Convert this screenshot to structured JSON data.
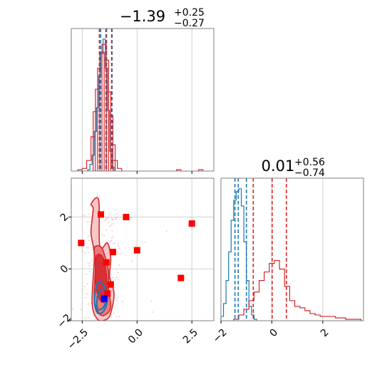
{
  "colors": {
    "blue": "#1f77b4",
    "red": "#d62728",
    "marker_red": "#ff0000",
    "marker_blue": "#0000ff",
    "fill_light": "#f6c6c8",
    "fill_mid": "#ea7a7e",
    "fill_dark": "#d92f36",
    "grid": "#cfcfcf"
  },
  "chart_data": [
    {
      "type": "histogram",
      "panel": "top-left marginal",
      "title": {
        "value": "−1.39",
        "sup": "+0.25",
        "sub": "−0.27"
      },
      "xlim": [
        -3.0,
        3.5
      ],
      "grid_x": [
        -2.5,
        0.0,
        2.5
      ],
      "series": [
        {
          "color": "blue",
          "bin_centers": [
            -2.2,
            -2.1,
            -2.0,
            -1.9,
            -1.8,
            -1.7,
            -1.6,
            -1.5,
            -1.4,
            -1.3,
            -1.2,
            -1.1
          ],
          "counts": [
            1,
            5,
            12,
            30,
            48,
            72,
            89,
            100,
            78,
            46,
            15,
            3
          ]
        },
        {
          "color": "red",
          "bin_centers": [
            -2.6,
            -2.4,
            -2.2,
            -2.0,
            -1.9,
            -1.8,
            -1.7,
            -1.6,
            -1.5,
            -1.4,
            -1.3,
            -1.2,
            -1.1,
            -1.0,
            -0.8,
            1.9,
            2.9
          ],
          "counts": [
            1,
            2,
            8,
            26,
            45,
            62,
            78,
            90,
            96,
            84,
            60,
            42,
            20,
            8,
            2,
            1,
            1
          ]
        }
      ],
      "quantile_lines": [
        {
          "color": "blue",
          "x": [
            -1.66,
            -1.39,
            -1.14
          ]
        },
        {
          "color": "red",
          "x": [
            -1.72,
            -1.42,
            -1.16
          ]
        }
      ]
    },
    {
      "type": "histogram",
      "panel": "bottom-right marginal",
      "title": {
        "value": "0.01",
        "sup": "+0.56",
        "sub": "−0.74"
      },
      "xlim": [
        -2.0,
        3.6
      ],
      "xticks": [
        -2,
        0,
        2
      ],
      "xtick_labels": [
        "−2",
        "0",
        "2"
      ],
      "series": [
        {
          "color": "blue",
          "bin_centers": [
            -1.95,
            -1.85,
            -1.75,
            -1.65,
            -1.55,
            -1.45,
            -1.35,
            -1.25,
            -1.15,
            -1.05,
            -0.95,
            -0.85,
            -0.75,
            -0.65
          ],
          "counts": [
            3,
            12,
            28,
            48,
            70,
            84,
            90,
            92,
            80,
            55,
            28,
            10,
            4,
            1
          ]
        },
        {
          "color": "red",
          "bin_centers": [
            -1.4,
            -1.2,
            -1.0,
            -0.8,
            -0.6,
            -0.4,
            -0.2,
            0.0,
            0.2,
            0.4,
            0.6,
            0.8,
            1.0,
            1.2,
            1.4,
            1.6,
            1.8,
            2.0,
            2.2,
            2.4,
            2.6,
            2.8,
            3.0,
            3.2,
            3.4
          ],
          "counts": [
            1,
            4,
            8,
            14,
            20,
            28,
            34,
            40,
            42,
            36,
            24,
            14,
            10,
            9,
            7,
            5,
            4,
            3,
            3,
            3,
            2,
            2,
            1,
            1,
            1
          ]
        }
      ],
      "quantile_lines": [
        {
          "color": "blue",
          "x": [
            -1.45,
            -1.32,
            -1.0
          ]
        },
        {
          "color": "red",
          "x": [
            -0.73,
            0.01,
            0.57
          ]
        }
      ]
    },
    {
      "type": "scatter",
      "panel": "bottom-left joint",
      "xlim": [
        -3.0,
        3.5
      ],
      "ylim": [
        -2.0,
        3.5
      ],
      "xticks": [
        -2.5,
        0.0,
        2.5
      ],
      "xtick_labels": [
        "−2.5",
        "0.0",
        "2.5"
      ],
      "yticks": [
        -2,
        0,
        2
      ],
      "ytick_labels": [
        "−2",
        "0",
        "2"
      ],
      "red_contours": [
        {
          "x": [
            -2.1,
            -1.75,
            -1.7,
            -1.35,
            -1.2,
            -1.25,
            -1.05,
            -1.2,
            -1.4,
            -1.8,
            -2.05,
            -1.95,
            -2.1,
            -2.0
          ],
          "y": [
            2.5,
            2.65,
            0.85,
            1.0,
            0.4,
            -0.3,
            -0.95,
            -1.7,
            -1.95,
            -1.95,
            -1.3,
            0.5,
            1.4,
            2.3
          ]
        },
        {
          "x": [
            -1.95,
            -1.65,
            -1.45,
            -1.3,
            -1.3,
            -1.2,
            -1.4,
            -1.7,
            -1.95,
            -1.9
          ],
          "y": [
            0.8,
            0.85,
            0.45,
            -0.1,
            -0.8,
            -1.45,
            -1.75,
            -1.75,
            -1.2,
            0.1
          ]
        },
        {
          "x": [
            -1.85,
            -1.6,
            -1.45,
            -1.38,
            -1.4,
            -1.65,
            -1.85,
            -1.9
          ],
          "y": [
            0.5,
            0.5,
            0.1,
            -0.5,
            -1.2,
            -1.25,
            -0.8,
            -0.1
          ]
        }
      ],
      "blue_contours": [
        {
          "x": [
            -1.8,
            -1.55,
            -1.35,
            -1.5,
            -1.8,
            -1.95
          ],
          "y": [
            -0.55,
            -0.6,
            -1.1,
            -1.6,
            -1.7,
            -1.2
          ]
        },
        {
          "x": [
            -1.7,
            -1.5,
            -1.4,
            -1.55,
            -1.8,
            -1.82
          ],
          "y": [
            -0.85,
            -0.82,
            -1.15,
            -1.5,
            -1.55,
            -1.15
          ]
        }
      ],
      "red_markers": [
        {
          "x": -1.65,
          "y": 2.1
        },
        {
          "x": -0.5,
          "y": 2.0
        },
        {
          "x": 2.5,
          "y": 1.75
        },
        {
          "x": -2.55,
          "y": 1.0
        },
        {
          "x": -1.1,
          "y": 0.65
        },
        {
          "x": 0.0,
          "y": 0.72
        },
        {
          "x": -1.4,
          "y": 0.25
        },
        {
          "x": 2.0,
          "y": -0.35
        },
        {
          "x": -1.2,
          "y": -0.6
        },
        {
          "x": -1.35,
          "y": -0.95
        }
      ],
      "blue_markers": [
        {
          "x": -1.5,
          "y": -1.15
        }
      ]
    }
  ]
}
